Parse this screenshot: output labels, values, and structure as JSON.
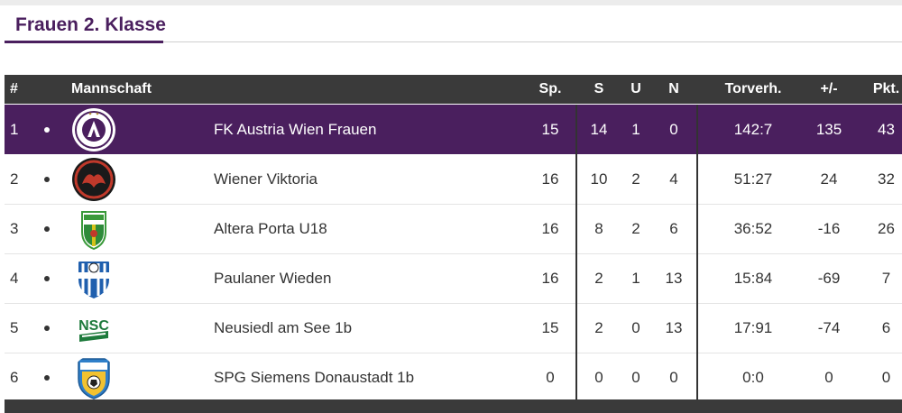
{
  "title": "Frauen 2. Klasse",
  "colors": {
    "accent": "#4a1f5e",
    "header_bg": "#3a3a3a"
  },
  "columns": {
    "rank": "#",
    "team": "Mannschaft",
    "played": "Sp.",
    "won": "S",
    "draw": "U",
    "lost": "N",
    "goals": "Torverh.",
    "diff": "+/-",
    "points": "Pkt."
  },
  "rows": [
    {
      "rank": "1",
      "logo": "austria-wien-crest",
      "team": "FK Austria Wien Frauen",
      "played": "15",
      "won": "14",
      "draw": "1",
      "lost": "0",
      "goals": "142:7",
      "diff": "135",
      "points": "43"
    },
    {
      "rank": "2",
      "logo": "wiener-viktoria-crest",
      "team": "Wiener Viktoria",
      "played": "16",
      "won": "10",
      "draw": "2",
      "lost": "4",
      "goals": "51:27",
      "diff": "24",
      "points": "32"
    },
    {
      "rank": "3",
      "logo": "altera-porta-crest",
      "team": "Altera Porta U18",
      "played": "16",
      "won": "8",
      "draw": "2",
      "lost": "6",
      "goals": "36:52",
      "diff": "-16",
      "points": "26"
    },
    {
      "rank": "4",
      "logo": "paulaner-wieden-crest",
      "team": "Paulaner Wieden",
      "played": "16",
      "won": "2",
      "draw": "1",
      "lost": "13",
      "goals": "15:84",
      "diff": "-69",
      "points": "7"
    },
    {
      "rank": "5",
      "logo": "neusiedl-crest",
      "team": "Neusiedl am See 1b",
      "played": "15",
      "won": "2",
      "draw": "0",
      "lost": "13",
      "goals": "17:91",
      "diff": "-74",
      "points": "6"
    },
    {
      "rank": "6",
      "logo": "siemens-grossfeld-crest",
      "team": "SPG Siemens Donaustadt 1b",
      "played": "0",
      "won": "0",
      "draw": "0",
      "lost": "0",
      "goals": "0:0",
      "diff": "0",
      "points": "0"
    }
  ]
}
